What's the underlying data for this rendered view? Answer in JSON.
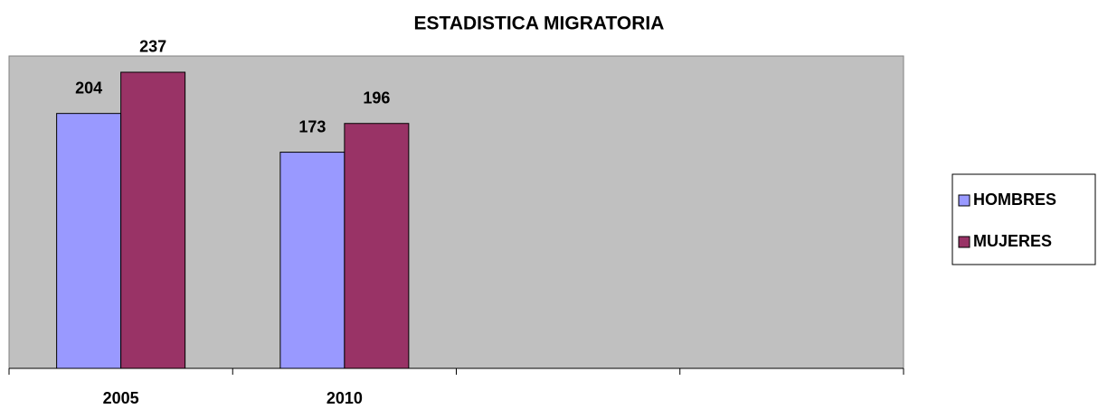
{
  "chart_data": {
    "type": "bar",
    "title": "ESTADISTICA MIGRATORIA",
    "categories": [
      "2005",
      "2010",
      null,
      null
    ],
    "series": [
      {
        "name": "HOMBRES",
        "color": "#9999ff",
        "values": [
          204,
          173,
          null,
          null
        ]
      },
      {
        "name": "MUJERES",
        "color": "#993366",
        "values": [
          237,
          196,
          null,
          null
        ]
      }
    ],
    "ylim": [
      0,
      250
    ],
    "plot_background": "#c0c0c0",
    "legend": "right"
  }
}
